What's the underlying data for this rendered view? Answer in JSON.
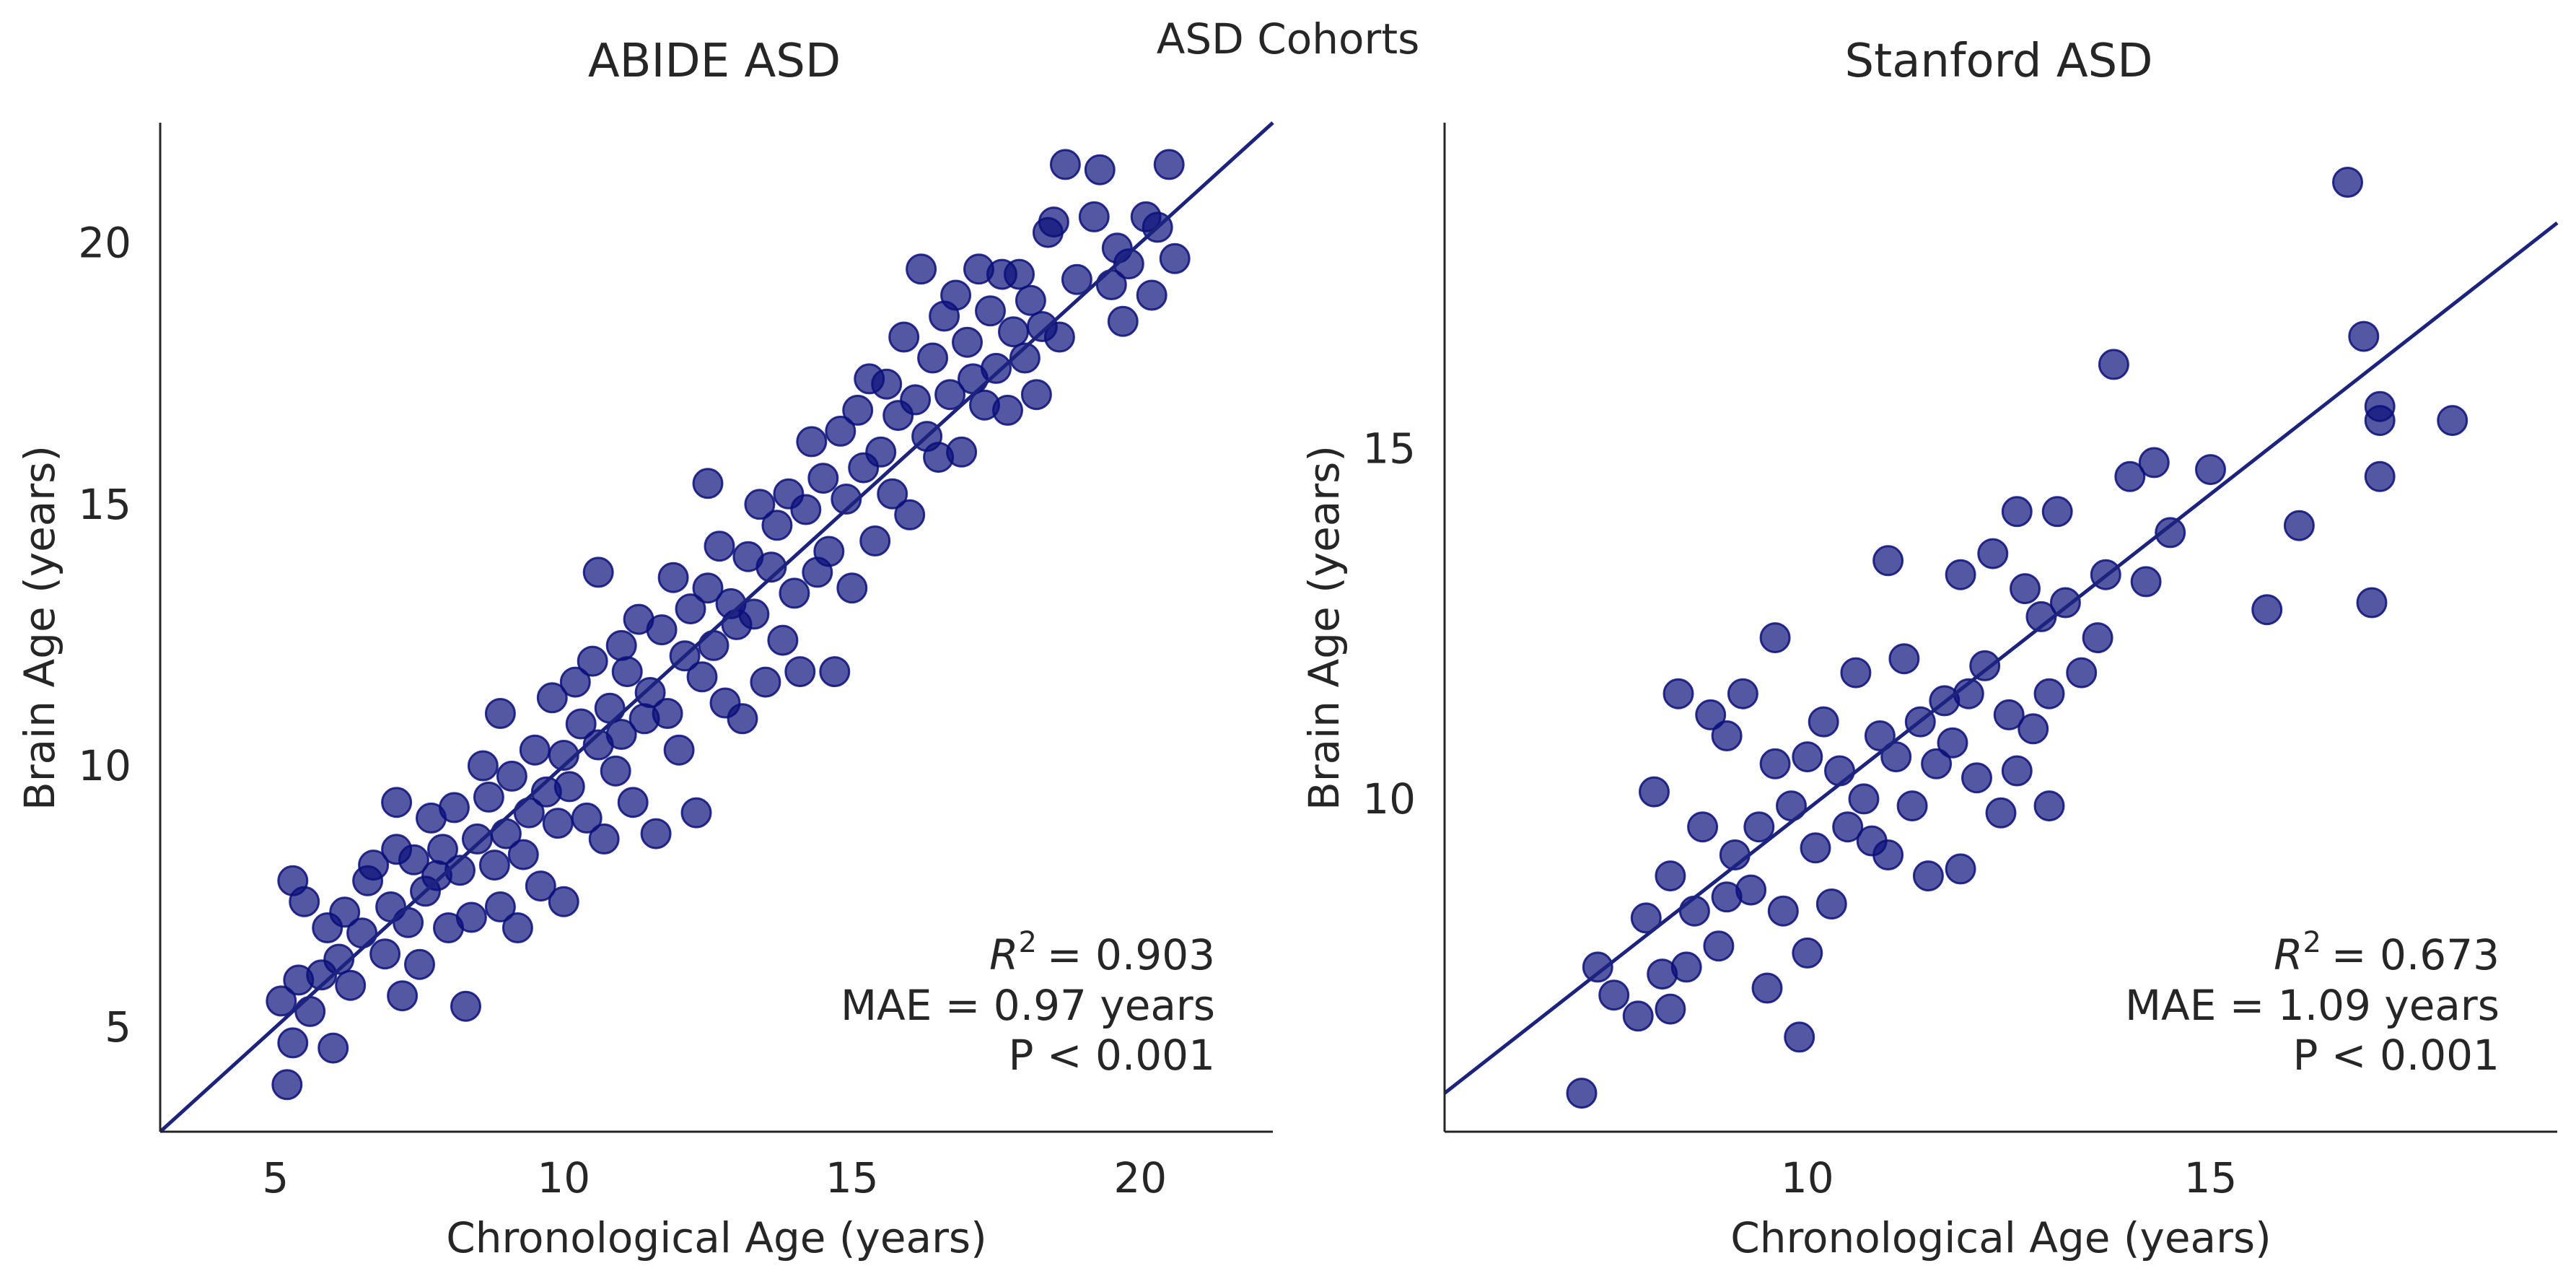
{
  "figure": {
    "suptitle": "ASD Cohorts"
  },
  "colors": {
    "points": "#0b0f7a",
    "fit_line": "#1c237e",
    "axes": "#262626",
    "text": "#262626"
  },
  "chart_data": [
    {
      "type": "scatter",
      "title": "ABIDE ASD",
      "xlabel": "Chronological Age (years)",
      "ylabel": "Brain Age (years)",
      "xlim": [
        3.0,
        22.3
      ],
      "ylim": [
        3.0,
        22.3
      ],
      "xticks": [
        5,
        10,
        15,
        20
      ],
      "yticks": [
        5,
        10,
        15,
        20
      ],
      "fit_line": {
        "slope": 1.0,
        "intercept": 0.0
      },
      "annotation": {
        "r2": "R^2 = 0.903",
        "r2_value": "= 0.903",
        "mae": "MAE = 0.97 years",
        "p": "P < 0.001"
      },
      "marker_opacity": 0.7,
      "points": [
        [
          5.1,
          5.5
        ],
        [
          5.3,
          4.7
        ],
        [
          5.2,
          3.9
        ],
        [
          5.3,
          7.8
        ],
        [
          5.5,
          7.4
        ],
        [
          5.4,
          5.9
        ],
        [
          5.6,
          5.3
        ],
        [
          5.8,
          6.0
        ],
        [
          6.0,
          4.6
        ],
        [
          6.1,
          6.3
        ],
        [
          5.9,
          6.9
        ],
        [
          6.2,
          7.2
        ],
        [
          6.3,
          5.8
        ],
        [
          6.5,
          6.8
        ],
        [
          6.6,
          7.8
        ],
        [
          6.7,
          8.1
        ],
        [
          6.9,
          6.4
        ],
        [
          7.0,
          7.3
        ],
        [
          7.1,
          9.3
        ],
        [
          7.2,
          5.6
        ],
        [
          7.1,
          8.4
        ],
        [
          7.3,
          7.0
        ],
        [
          7.4,
          8.2
        ],
        [
          7.5,
          6.2
        ],
        [
          7.6,
          7.6
        ],
        [
          7.7,
          9.0
        ],
        [
          7.8,
          7.9
        ],
        [
          7.9,
          8.4
        ],
        [
          8.0,
          6.9
        ],
        [
          8.1,
          9.2
        ],
        [
          8.2,
          8.0
        ],
        [
          8.3,
          5.4
        ],
        [
          8.4,
          7.1
        ],
        [
          8.5,
          8.6
        ],
        [
          8.6,
          10.0
        ],
        [
          8.7,
          9.4
        ],
        [
          8.8,
          8.1
        ],
        [
          8.9,
          7.3
        ],
        [
          8.9,
          11.0
        ],
        [
          9.0,
          8.7
        ],
        [
          9.1,
          9.8
        ],
        [
          9.2,
          6.9
        ],
        [
          9.3,
          8.3
        ],
        [
          9.4,
          9.1
        ],
        [
          9.5,
          10.3
        ],
        [
          9.6,
          7.7
        ],
        [
          9.7,
          9.5
        ],
        [
          9.8,
          11.3
        ],
        [
          9.9,
          8.9
        ],
        [
          10.0,
          10.2
        ],
        [
          10.0,
          7.4
        ],
        [
          10.1,
          9.6
        ],
        [
          10.2,
          11.6
        ],
        [
          10.3,
          10.8
        ],
        [
          10.4,
          9.0
        ],
        [
          10.5,
          12.0
        ],
        [
          10.6,
          10.4
        ],
        [
          10.6,
          13.7
        ],
        [
          10.7,
          8.6
        ],
        [
          10.8,
          11.1
        ],
        [
          10.9,
          9.9
        ],
        [
          11.0,
          12.3
        ],
        [
          11.0,
          10.6
        ],
        [
          11.1,
          11.8
        ],
        [
          11.2,
          9.3
        ],
        [
          11.3,
          12.8
        ],
        [
          11.4,
          10.9
        ],
        [
          11.5,
          11.4
        ],
        [
          11.6,
          8.7
        ],
        [
          11.7,
          12.6
        ],
        [
          11.8,
          11.0
        ],
        [
          11.9,
          13.6
        ],
        [
          12.0,
          10.3
        ],
        [
          12.1,
          12.1
        ],
        [
          12.2,
          13.0
        ],
        [
          12.3,
          9.1
        ],
        [
          12.4,
          11.7
        ],
        [
          12.5,
          13.4
        ],
        [
          12.5,
          15.4
        ],
        [
          12.6,
          12.3
        ],
        [
          12.7,
          14.2
        ],
        [
          12.8,
          11.2
        ],
        [
          12.9,
          13.1
        ],
        [
          13.0,
          12.7
        ],
        [
          13.1,
          10.9
        ],
        [
          13.2,
          14.0
        ],
        [
          13.3,
          12.9
        ],
        [
          13.4,
          15.0
        ],
        [
          13.5,
          11.6
        ],
        [
          13.6,
          13.8
        ],
        [
          13.7,
          14.6
        ],
        [
          13.8,
          12.4
        ],
        [
          13.9,
          15.2
        ],
        [
          14.0,
          13.3
        ],
        [
          14.1,
          11.8
        ],
        [
          14.2,
          14.9
        ],
        [
          14.3,
          16.2
        ],
        [
          14.4,
          13.7
        ],
        [
          14.5,
          15.5
        ],
        [
          14.6,
          14.1
        ],
        [
          14.7,
          11.8
        ],
        [
          14.8,
          16.4
        ],
        [
          14.9,
          15.1
        ],
        [
          15.0,
          13.4
        ],
        [
          15.1,
          16.8
        ],
        [
          15.2,
          15.7
        ],
        [
          15.3,
          17.4
        ],
        [
          15.4,
          14.3
        ],
        [
          15.5,
          16.0
        ],
        [
          15.6,
          17.3
        ],
        [
          15.7,
          15.2
        ],
        [
          15.8,
          16.7
        ],
        [
          15.9,
          18.2
        ],
        [
          16.0,
          14.8
        ],
        [
          16.1,
          17.0
        ],
        [
          16.2,
          19.5
        ],
        [
          16.3,
          16.3
        ],
        [
          16.4,
          17.8
        ],
        [
          16.5,
          15.9
        ],
        [
          16.6,
          18.6
        ],
        [
          16.7,
          17.1
        ],
        [
          16.8,
          19.0
        ],
        [
          16.9,
          16.0
        ],
        [
          17.0,
          18.1
        ],
        [
          17.1,
          17.4
        ],
        [
          17.2,
          19.5
        ],
        [
          17.3,
          16.9
        ],
        [
          17.4,
          18.7
        ],
        [
          17.5,
          17.6
        ],
        [
          17.6,
          19.4
        ],
        [
          17.7,
          16.8
        ],
        [
          17.8,
          18.3
        ],
        [
          17.9,
          19.4
        ],
        [
          18.0,
          17.8
        ],
        [
          18.1,
          18.9
        ],
        [
          18.2,
          17.1
        ],
        [
          18.3,
          18.4
        ],
        [
          18.4,
          20.2
        ],
        [
          18.5,
          20.4
        ],
        [
          18.6,
          18.2
        ],
        [
          18.7,
          21.5
        ],
        [
          18.9,
          19.3
        ],
        [
          19.2,
          20.5
        ],
        [
          19.3,
          21.4
        ],
        [
          19.5,
          19.2
        ],
        [
          19.6,
          19.9
        ],
        [
          19.7,
          18.5
        ],
        [
          19.8,
          19.6
        ],
        [
          20.1,
          20.5
        ],
        [
          20.2,
          19.0
        ],
        [
          20.3,
          20.3
        ],
        [
          20.5,
          21.5
        ],
        [
          20.6,
          19.7
        ]
      ]
    },
    {
      "type": "scatter",
      "title": "Stanford ASD",
      "xlabel": "Chronological Age (years)",
      "ylabel": "Brain Age (years)",
      "xlim": [
        5.5,
        19.3
      ],
      "ylim": [
        5.25,
        19.65
      ],
      "xticks": [
        10,
        15
      ],
      "yticks": [
        10,
        15
      ],
      "fit_line": {
        "slope": 0.9,
        "intercept": 0.85
      },
      "annotation": {
        "r2": "R^2 = 0.673",
        "r2_value": "= 0.673",
        "mae": "MAE = 1.09 years",
        "p": "P < 0.001"
      },
      "marker_opacity": 0.7,
      "points": [
        [
          7.2,
          5.8
        ],
        [
          7.4,
          7.6
        ],
        [
          7.6,
          7.2
        ],
        [
          7.9,
          6.9
        ],
        [
          8.0,
          8.3
        ],
        [
          8.1,
          10.1
        ],
        [
          8.2,
          7.5
        ],
        [
          8.3,
          7.0
        ],
        [
          8.3,
          8.9
        ],
        [
          8.4,
          11.5
        ],
        [
          8.5,
          7.6
        ],
        [
          8.6,
          8.4
        ],
        [
          8.7,
          9.6
        ],
        [
          8.8,
          11.2
        ],
        [
          8.9,
          7.9
        ],
        [
          9.0,
          8.6
        ],
        [
          9.0,
          10.9
        ],
        [
          9.1,
          9.2
        ],
        [
          9.2,
          11.5
        ],
        [
          9.3,
          8.7
        ],
        [
          9.4,
          9.6
        ],
        [
          9.5,
          7.3
        ],
        [
          9.6,
          10.5
        ],
        [
          9.6,
          12.3
        ],
        [
          9.7,
          8.4
        ],
        [
          9.8,
          9.9
        ],
        [
          9.9,
          6.6
        ],
        [
          10.0,
          10.6
        ],
        [
          10.0,
          7.8
        ],
        [
          10.1,
          9.3
        ],
        [
          10.2,
          11.1
        ],
        [
          10.3,
          8.5
        ],
        [
          10.4,
          10.4
        ],
        [
          10.5,
          9.6
        ],
        [
          10.6,
          11.8
        ],
        [
          10.7,
          10.0
        ],
        [
          10.8,
          9.4
        ],
        [
          10.9,
          10.9
        ],
        [
          11.0,
          13.4
        ],
        [
          11.0,
          9.2
        ],
        [
          11.1,
          10.6
        ],
        [
          11.2,
          12.0
        ],
        [
          11.3,
          9.9
        ],
        [
          11.4,
          11.1
        ],
        [
          11.5,
          8.9
        ],
        [
          11.6,
          10.5
        ],
        [
          11.7,
          11.4
        ],
        [
          11.8,
          10.8
        ],
        [
          11.9,
          9.0
        ],
        [
          11.9,
          13.2
        ],
        [
          12.0,
          11.5
        ],
        [
          12.1,
          10.3
        ],
        [
          12.2,
          11.9
        ],
        [
          12.3,
          13.5
        ],
        [
          12.4,
          9.8
        ],
        [
          12.5,
          11.2
        ],
        [
          12.6,
          14.1
        ],
        [
          12.6,
          10.4
        ],
        [
          12.7,
          13.0
        ],
        [
          12.8,
          11.0
        ],
        [
          12.9,
          12.6
        ],
        [
          13.0,
          11.5
        ],
        [
          13.0,
          9.9
        ],
        [
          13.1,
          14.1
        ],
        [
          13.2,
          12.8
        ],
        [
          13.4,
          11.8
        ],
        [
          13.6,
          12.3
        ],
        [
          13.7,
          13.2
        ],
        [
          13.8,
          16.2
        ],
        [
          14.0,
          14.6
        ],
        [
          14.2,
          13.1
        ],
        [
          14.3,
          14.8
        ],
        [
          14.5,
          13.8
        ],
        [
          15.0,
          14.7
        ],
        [
          15.7,
          12.7
        ],
        [
          16.1,
          13.9
        ],
        [
          16.7,
          18.8
        ],
        [
          16.9,
          16.6
        ],
        [
          17.0,
          12.8
        ],
        [
          17.1,
          15.6
        ],
        [
          17.1,
          15.4
        ],
        [
          17.1,
          14.6
        ],
        [
          18.0,
          15.4
        ]
      ]
    }
  ]
}
